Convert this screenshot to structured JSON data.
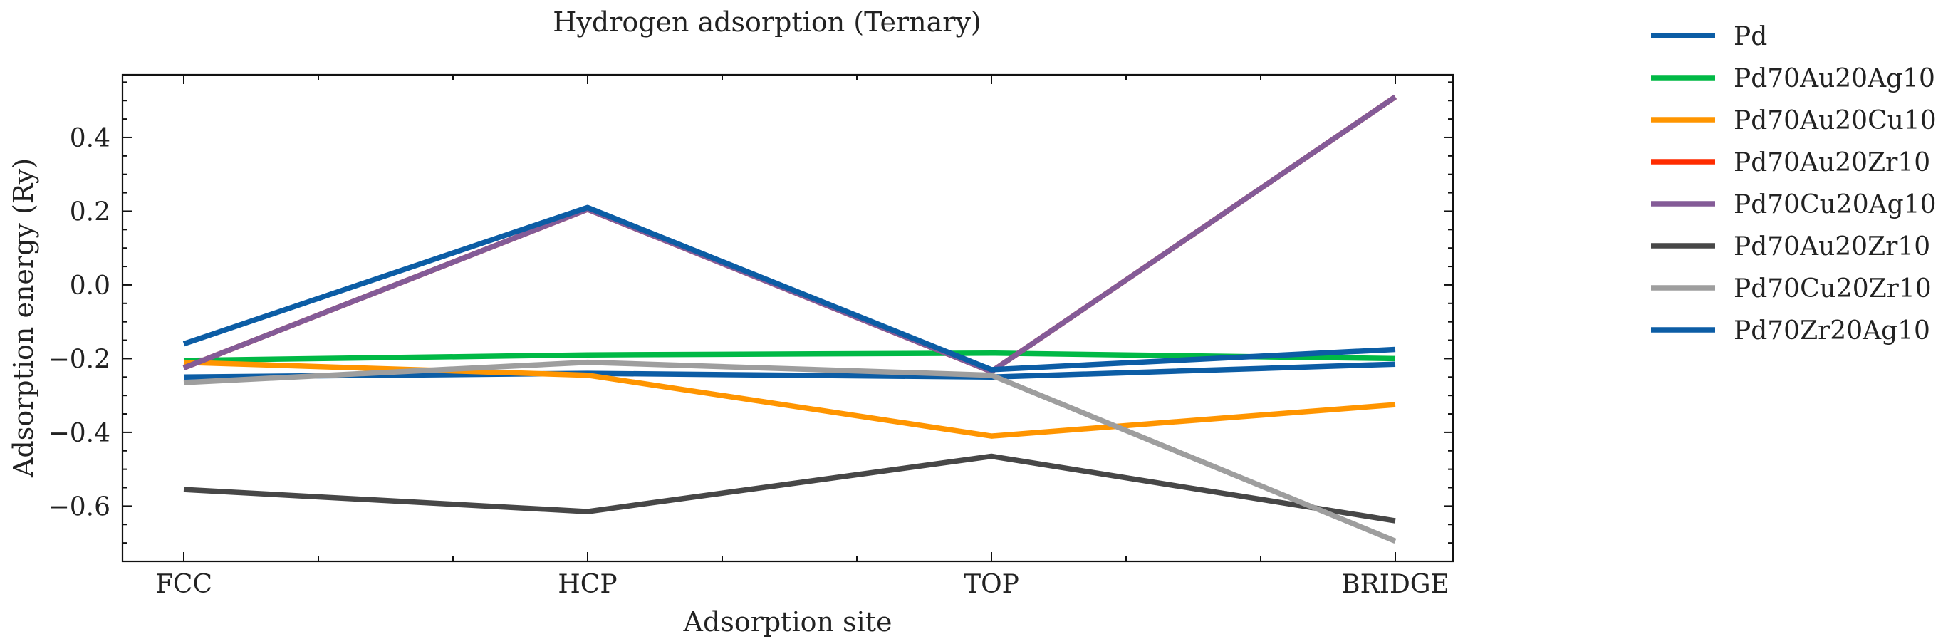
{
  "chart_data": {
    "type": "line",
    "title": "Hydrogen adsorption (Ternary)",
    "xlabel": "Adsorption site",
    "ylabel": "Adsorption energy (Ry)",
    "categories": [
      "FCC",
      "HCP",
      "TOP",
      "BRIDGE"
    ],
    "ylim": [
      -0.75,
      0.57
    ],
    "yticks": [
      0.4,
      0.2,
      0.0,
      -0.2,
      -0.4,
      -0.6
    ],
    "ytick_labels": [
      "0.4",
      "0.2",
      "0.0",
      "−0.2",
      "−0.4",
      "−0.6"
    ],
    "grid": false,
    "legend_position": "outside-right",
    "series": [
      {
        "name": "Pd",
        "color": "#0c5da5",
        "values": [
          -0.25,
          -0.24,
          -0.25,
          -0.215
        ]
      },
      {
        "name": "Pd70Au20Ag10",
        "color": "#00b945",
        "values": [
          -0.205,
          -0.19,
          -0.185,
          -0.2
        ]
      },
      {
        "name": "Pd70Au20Cu10",
        "color": "#ff9500",
        "values": [
          -0.21,
          -0.245,
          -0.41,
          -0.325
        ]
      },
      {
        "name": "Pd70Au20Zr10",
        "color": "#ff2c00",
        "values": [
          -0.225,
          0.205,
          -0.235,
          0.51
        ]
      },
      {
        "name": "Pd70Cu20Ag10",
        "color": "#845b97",
        "values": [
          -0.225,
          0.205,
          -0.235,
          0.51
        ]
      },
      {
        "name": "Pd70Au20Zr10",
        "color": "#474747",
        "values": [
          -0.555,
          -0.615,
          -0.465,
          -0.64
        ]
      },
      {
        "name": "Pd70Cu20Zr10",
        "color": "#9e9e9e",
        "values": [
          -0.265,
          -0.21,
          -0.245,
          -0.695
        ]
      },
      {
        "name": "Pd70Zr20Ag10",
        "color": "#0c5da5",
        "values": [
          -0.16,
          0.21,
          -0.23,
          -0.175
        ]
      }
    ]
  }
}
